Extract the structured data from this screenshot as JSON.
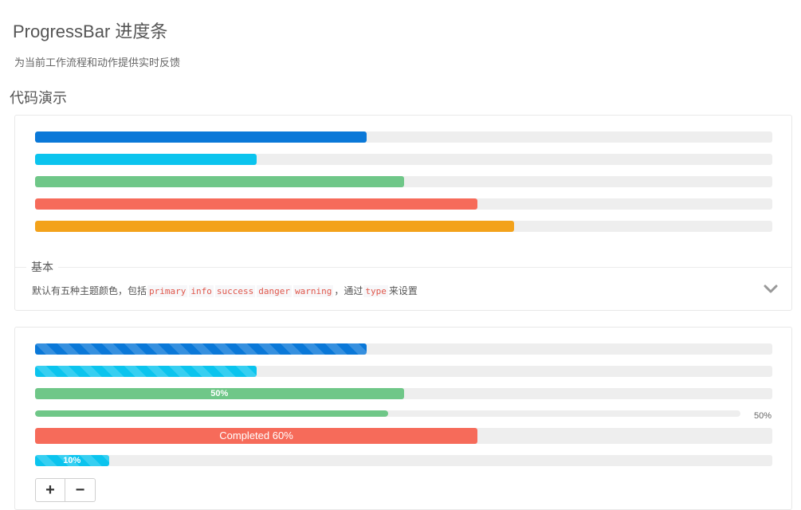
{
  "page": {
    "title": "ProgressBar 进度条",
    "description": "为当前工作流程和动作提供实时反馈",
    "section_title": "代码演示"
  },
  "basic_demo": {
    "bars": [
      {
        "type": "primary",
        "percent": 45
      },
      {
        "type": "info",
        "percent": 30
      },
      {
        "type": "success",
        "percent": 50
      },
      {
        "type": "danger",
        "percent": 60
      },
      {
        "type": "warning",
        "percent": 65
      }
    ],
    "meta": {
      "title": "基本",
      "desc_before": "默认有五种主题颜色，包括",
      "codes": [
        "primary",
        "info",
        "success",
        "danger",
        "warning"
      ],
      "desc_middle": "，通过",
      "code_type": "type",
      "desc_after": "来设置"
    }
  },
  "advanced_demo": {
    "striped_primary": {
      "percent": 45
    },
    "striped_info": {
      "percent": 30
    },
    "labeled_success": {
      "percent": 50,
      "label": "50%"
    },
    "thin_success": {
      "percent": 50,
      "side_label": "50%"
    },
    "large_danger": {
      "percent": 60,
      "label": "Completed 60%"
    },
    "striped_small_info": {
      "percent": 10,
      "label": "10%"
    },
    "buttons": {
      "increase": "+",
      "decrease": "−"
    }
  },
  "colors": {
    "primary": "#0a78d8",
    "info": "#0bc4ee",
    "success": "#6fc788",
    "danger": "#f66b5a",
    "warning": "#f3a21b",
    "track": "#eeeeee"
  }
}
